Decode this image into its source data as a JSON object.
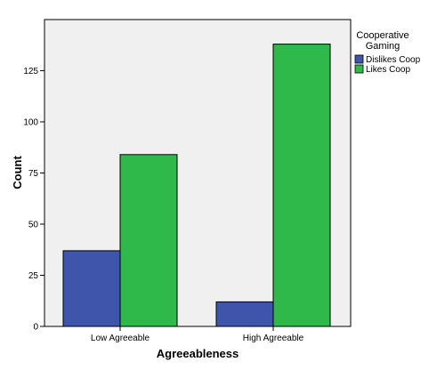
{
  "chart_data": {
    "type": "bar",
    "categories": [
      "Low Agreeable",
      "High Agreeable"
    ],
    "series": [
      {
        "name": "Dislikes Coop",
        "values": [
          37,
          12
        ],
        "color": "#3f54ab"
      },
      {
        "name": "Likes Coop",
        "values": [
          84,
          138
        ],
        "color": "#2eb94a"
      }
    ],
    "xlabel": "Agreeableness",
    "ylabel": "Count",
    "ylim": [
      0,
      150
    ],
    "yticks": [
      0,
      25,
      50,
      75,
      100,
      125
    ],
    "ytick_labels": [
      "0",
      "25",
      "50",
      "75",
      "100",
      "125"
    ],
    "legend_title": [
      "Cooperative",
      "Gaming"
    ],
    "legend_position": "right",
    "plot_background": "#f0f0f0",
    "grid": false
  }
}
